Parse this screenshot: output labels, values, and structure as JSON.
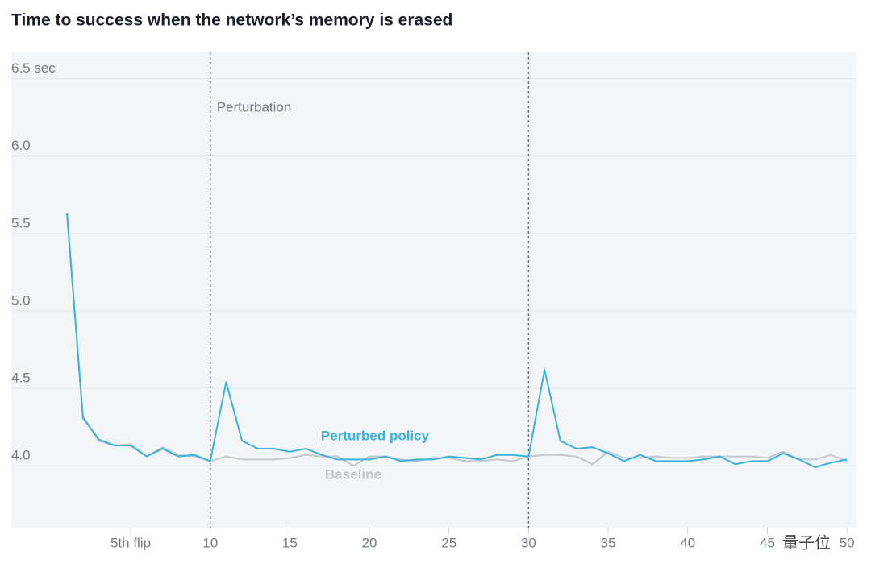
{
  "chart_data": {
    "type": "line",
    "title": "Time to success when the network’s memory is erased",
    "x": [
      1,
      2,
      3,
      4,
      5,
      6,
      7,
      8,
      9,
      10,
      11,
      12,
      13,
      14,
      15,
      16,
      17,
      18,
      19,
      20,
      21,
      22,
      23,
      24,
      25,
      26,
      27,
      28,
      29,
      30,
      31,
      32,
      33,
      34,
      35,
      36,
      37,
      38,
      39,
      40,
      41,
      42,
      43,
      44,
      45,
      46,
      47,
      48,
      49,
      50
    ],
    "series": [
      {
        "name": "Baseline",
        "color": "#c3c7ce",
        "values": [
          5.63,
          4.32,
          4.16,
          4.13,
          4.14,
          4.06,
          4.12,
          4.07,
          4.06,
          4.03,
          4.06,
          4.04,
          4.04,
          4.04,
          4.05,
          4.07,
          4.06,
          4.06,
          4.0,
          4.06,
          4.06,
          4.04,
          4.03,
          4.05,
          4.05,
          4.03,
          4.03,
          4.04,
          4.03,
          4.06,
          4.07,
          4.07,
          4.06,
          4.01,
          4.09,
          4.05,
          4.05,
          4.06,
          4.05,
          4.05,
          4.06,
          4.06,
          4.06,
          4.06,
          4.05,
          4.09,
          4.04,
          4.04,
          4.07,
          4.03
        ]
      },
      {
        "name": "Perturbed policy",
        "color": "#3ab2d9",
        "values": [
          5.63,
          4.31,
          4.17,
          4.13,
          4.13,
          4.06,
          4.11,
          4.06,
          4.07,
          4.03,
          4.54,
          4.16,
          4.11,
          4.11,
          4.09,
          4.11,
          4.07,
          4.04,
          4.04,
          4.04,
          4.06,
          4.03,
          4.04,
          4.04,
          4.06,
          4.05,
          4.04,
          4.07,
          4.07,
          4.06,
          4.62,
          4.16,
          4.11,
          4.12,
          4.08,
          4.03,
          4.07,
          4.03,
          4.03,
          4.03,
          4.04,
          4.06,
          4.01,
          4.03,
          4.03,
          4.08,
          4.04,
          3.99,
          4.02,
          4.04
        ]
      }
    ],
    "xlim": [
      -2.5,
      50.6
    ],
    "ylim": [
      3.6,
      6.67
    ],
    "xticks": [
      {
        "value": 5,
        "label": "5th flip"
      },
      10,
      15,
      20,
      25,
      30,
      35,
      40,
      45,
      50
    ],
    "yticks": [
      {
        "value": 4,
        "label": "4.0"
      },
      4.5,
      {
        "value": 5,
        "label": "5.0"
      },
      5.5,
      {
        "value": 6,
        "label": "6.0"
      },
      {
        "value": 6.5,
        "label": "6.5 sec"
      }
    ],
    "grid": true,
    "markers": [
      10,
      30
    ],
    "annotation": "Perturbation",
    "watermark": "量子位"
  }
}
